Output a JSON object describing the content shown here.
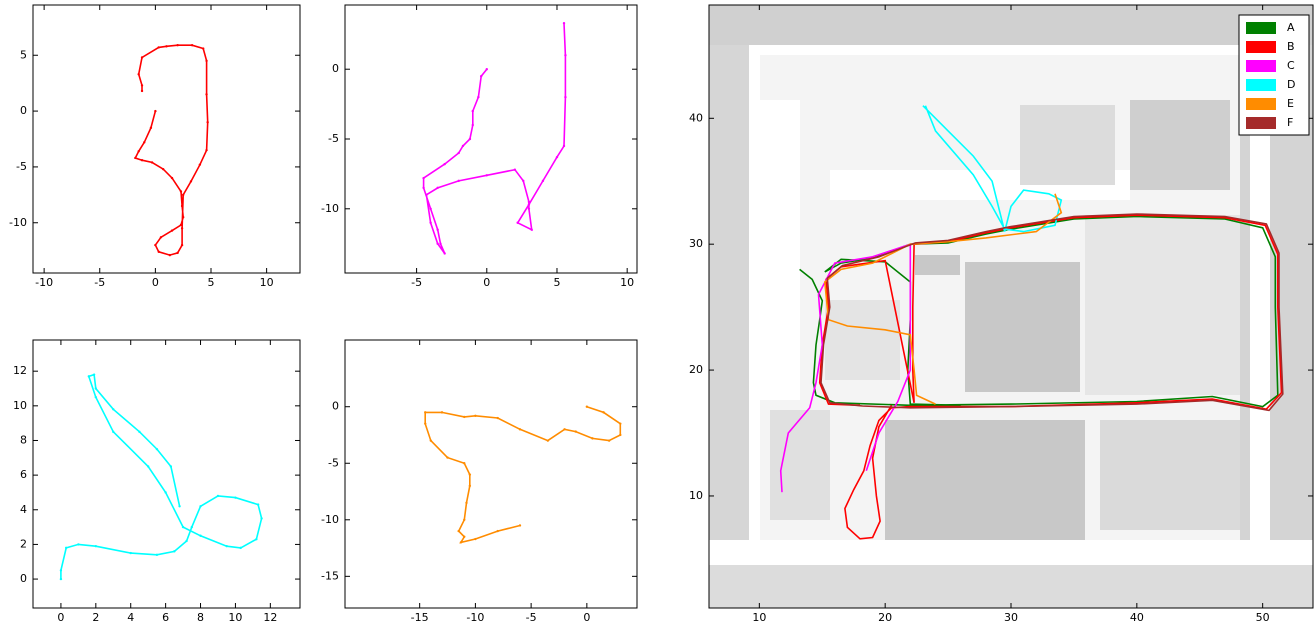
{
  "chart_data": [
    {
      "type": "line",
      "xlim": [
        -11,
        13
      ],
      "ylim": [
        -14.5,
        9.5
      ],
      "xticks": [
        -10,
        -5,
        0,
        5,
        10
      ],
      "yticks": [
        -10,
        -5,
        0,
        5
      ],
      "series": [
        {
          "color": "#ff0000",
          "x": [
            0,
            -0.4,
            -1,
            -1.5,
            -1.8,
            -1.2,
            -0.3,
            0.7,
            1.5,
            2.3,
            2.4,
            2.5,
            2.3,
            1.5,
            0.5,
            0,
            0.3,
            1.3,
            2,
            2.4,
            2.4,
            2.5,
            3.2,
            4,
            4.6,
            4.7,
            4.6,
            4.6,
            4.3,
            3.3,
            2,
            1,
            0.3,
            -1.2,
            -1.5,
            -1.2,
            -1.2
          ],
          "values": [
            0,
            -1.5,
            -2.8,
            -3.6,
            -4.2,
            -4.4,
            -4.6,
            -5.2,
            -6,
            -7.2,
            -8.5,
            -9.5,
            -10.2,
            -10.7,
            -11.3,
            -12,
            -12.6,
            -12.9,
            -12.7,
            -12,
            -10.5,
            -7.5,
            -6.3,
            -4.8,
            -3.5,
            -1,
            1.5,
            4.5,
            5.6,
            5.9,
            5.9,
            5.8,
            5.7,
            4.8,
            3.3,
            2.3,
            1.8
          ]
        }
      ]
    },
    {
      "type": "line",
      "xlim": [
        -10.1,
        10.7
      ],
      "ylim": [
        -14.6,
        4.6
      ],
      "xticks": [
        -5,
        0,
        5,
        10
      ],
      "yticks": [
        -10,
        -5,
        0
      ],
      "series": [
        {
          "color": "#ff00ff",
          "x": [
            0,
            -0.4,
            -0.6,
            -1,
            -1,
            -1.2,
            -1.7,
            -2,
            -3,
            -4.5,
            -4.5,
            -4,
            -3.5,
            -3.3,
            -3,
            -3.5,
            -4,
            -4.3,
            -3.5,
            -2,
            0,
            2,
            2.6,
            3,
            3,
            3.2,
            2.2,
            3,
            4,
            5,
            5.5,
            5.6,
            5.6,
            5.5
          ],
          "values": [
            0,
            -0.5,
            -2,
            -3,
            -4,
            -5,
            -5.5,
            -6,
            -6.8,
            -7.8,
            -8.5,
            -10,
            -11.5,
            -12.5,
            -13.2,
            -12.5,
            -11,
            -9,
            -8.5,
            -8,
            -7.6,
            -7.2,
            -8,
            -9.5,
            -10,
            -11.5,
            -11,
            -9.7,
            -8,
            -6.3,
            -5.5,
            -2,
            1,
            3.3
          ]
        }
      ]
    },
    {
      "type": "line",
      "xlim": [
        -1.6,
        13.7
      ],
      "ylim": [
        -1.67,
        13.8
      ],
      "xticks": [
        0,
        2,
        4,
        6,
        8,
        10,
        12
      ],
      "yticks": [
        0,
        2,
        4,
        6,
        8,
        10,
        12
      ],
      "series": [
        {
          "color": "#00ffff",
          "x": [
            0,
            0,
            0.3,
            1,
            2,
            4,
            5.5,
            6.5,
            7.2,
            7.5,
            8,
            9,
            10,
            11.3,
            11.5,
            11.2,
            10.3,
            9.5,
            8,
            7,
            6,
            5,
            3,
            2,
            1.6,
            1.9,
            2,
            3,
            4.5,
            5.5,
            6.3,
            6.8
          ],
          "values": [
            0,
            0.5,
            1.8,
            2,
            1.9,
            1.5,
            1.4,
            1.6,
            2.2,
            3,
            4.2,
            4.8,
            4.7,
            4.3,
            3.5,
            2.3,
            1.8,
            1.9,
            2.5,
            3,
            5,
            6.5,
            8.5,
            10.5,
            11.7,
            11.8,
            11,
            9.8,
            8.5,
            7.5,
            6.5,
            4.2
          ]
        }
      ]
    },
    {
      "type": "line",
      "xlim": [
        -21.7,
        4.5
      ],
      "ylim": [
        -17.8,
        5.9
      ],
      "xticks": [
        -15,
        -10,
        -5,
        0
      ],
      "yticks": [
        -15,
        -10,
        -5,
        0
      ],
      "series": [
        {
          "color": "#ff8c00",
          "x": [
            0,
            1.5,
            3,
            3,
            2,
            0.5,
            -1,
            -2,
            -3.5,
            -6,
            -8,
            -10,
            -11,
            -13,
            -14.5,
            -14.5,
            -14,
            -12.5,
            -11,
            -10.5,
            -10.5,
            -10.8,
            -11,
            -11.5,
            -11,
            -11.3,
            -10,
            -8,
            -6
          ],
          "values": [
            0,
            -0.5,
            -1.5,
            -2.5,
            -3,
            -2.8,
            -2.2,
            -2,
            -3,
            -2,
            -1,
            -0.8,
            -0.9,
            -0.5,
            -0.5,
            -1.5,
            -3,
            -4.5,
            -5,
            -6,
            -7,
            -8.5,
            -10,
            -11,
            -11.5,
            -12,
            -11.7,
            -11,
            -10.5
          ]
        }
      ]
    },
    {
      "type": "line",
      "xlim": [
        6,
        54
      ],
      "ylim": [
        1.1,
        49
      ],
      "xticks": [
        10,
        20,
        30,
        40,
        50
      ],
      "yticks": [
        10,
        20,
        30,
        40
      ],
      "legend": "upper right",
      "series": [
        {
          "name": "A",
          "color": "#008000",
          "x": [
            13.2,
            14.2,
            15,
            14.8,
            14.5,
            14.3,
            14.5,
            16,
            22,
            30,
            40,
            46,
            50,
            51.2,
            51,
            51,
            50,
            47,
            40,
            35,
            30,
            28,
            25,
            22,
            19,
            16.5,
            15.2,
            16.5,
            20,
            22,
            22,
            21.8,
            22,
            26
          ],
          "values": [
            28,
            27.2,
            25.5,
            24,
            22,
            19,
            18,
            17.4,
            17.2,
            17.3,
            17.5,
            17.9,
            17.1,
            18,
            25,
            29,
            31.3,
            32,
            32.2,
            32,
            31.2,
            30.8,
            30.1,
            30,
            28.9,
            28.5,
            27.8,
            28.8,
            28.6,
            27,
            24,
            20,
            17.3,
            17.2
          ]
        },
        {
          "name": "B",
          "color": "#ff0000",
          "x": [
            20.5,
            19.5,
            19,
            19.3,
            19.6,
            19,
            18,
            17,
            16.8,
            17.5,
            18.3,
            18.8,
            19.5,
            20.5,
            22,
            30,
            40,
            46,
            50.3,
            51.5,
            51.2,
            51.2,
            50.2,
            47,
            40,
            35,
            30,
            28,
            25,
            22.3,
            22.2,
            22.2,
            22.3,
            20,
            16.5,
            15.3,
            15.5,
            15,
            14.8,
            15.5,
            18
          ],
          "values": [
            17.2,
            15.5,
            13,
            10,
            8,
            6.7,
            6.6,
            7.5,
            9,
            10.5,
            12,
            14,
            16,
            17,
            17.1,
            17.1,
            17.4,
            17.7,
            16.9,
            18.2,
            25,
            29.2,
            31.5,
            32.1,
            32.3,
            32.1,
            31.3,
            30.9,
            30.2,
            30,
            25,
            20,
            17.4,
            28.7,
            28.2,
            27.2,
            25,
            22,
            19,
            17.3,
            17.2
          ]
        },
        {
          "name": "C",
          "color": "#ff00ff",
          "x": [
            11.8,
            11.7,
            12.3,
            14,
            14.5,
            15,
            14.7,
            16,
            19,
            22,
            22,
            21,
            19.5,
            18.5
          ],
          "values": [
            10.3,
            12,
            15,
            17,
            19,
            22,
            26,
            28.5,
            29,
            30,
            20,
            17.5,
            15,
            12
          ]
        },
        {
          "name": "D",
          "color": "#00ffff",
          "x": [
            23,
            25,
            27,
            28.5,
            29,
            29.5,
            30,
            31,
            33,
            34,
            33.5,
            31,
            29.5,
            28.5,
            27,
            24,
            23.2
          ],
          "values": [
            41,
            39,
            37,
            35,
            33,
            31,
            33,
            34.3,
            34,
            33.5,
            31.5,
            31,
            31.2,
            33,
            35.5,
            39,
            41
          ]
        },
        {
          "name": "E",
          "color": "#ff8c00",
          "x": [
            33.5,
            34,
            32,
            28,
            25,
            22,
            19,
            16.5,
            15.2,
            15.5,
            17,
            20,
            22,
            22.3,
            22.5,
            24
          ],
          "values": [
            34,
            32.5,
            31,
            30.5,
            30.2,
            30,
            28.5,
            28,
            27,
            24,
            23.5,
            23.2,
            22.8,
            20,
            18,
            17.3
          ]
        },
        {
          "name": "F",
          "color": "#a52a2a",
          "x": [
            18.2,
            22,
            30,
            40,
            46,
            50.5,
            51.6,
            51.3,
            51.3,
            50.3,
            47,
            40,
            35,
            30,
            28,
            25,
            22.4,
            19.5,
            16.6,
            15.4,
            15.6,
            15.1,
            14.9,
            15.6,
            18.2
          ],
          "values": [
            17.15,
            17,
            17.1,
            17.3,
            17.6,
            16.8,
            18.1,
            25,
            29.3,
            31.6,
            32.2,
            32.4,
            32.2,
            31.4,
            31,
            30.3,
            30.1,
            29,
            28.3,
            27.3,
            25,
            22,
            19,
            17.4,
            17.15
          ]
        }
      ]
    }
  ]
}
